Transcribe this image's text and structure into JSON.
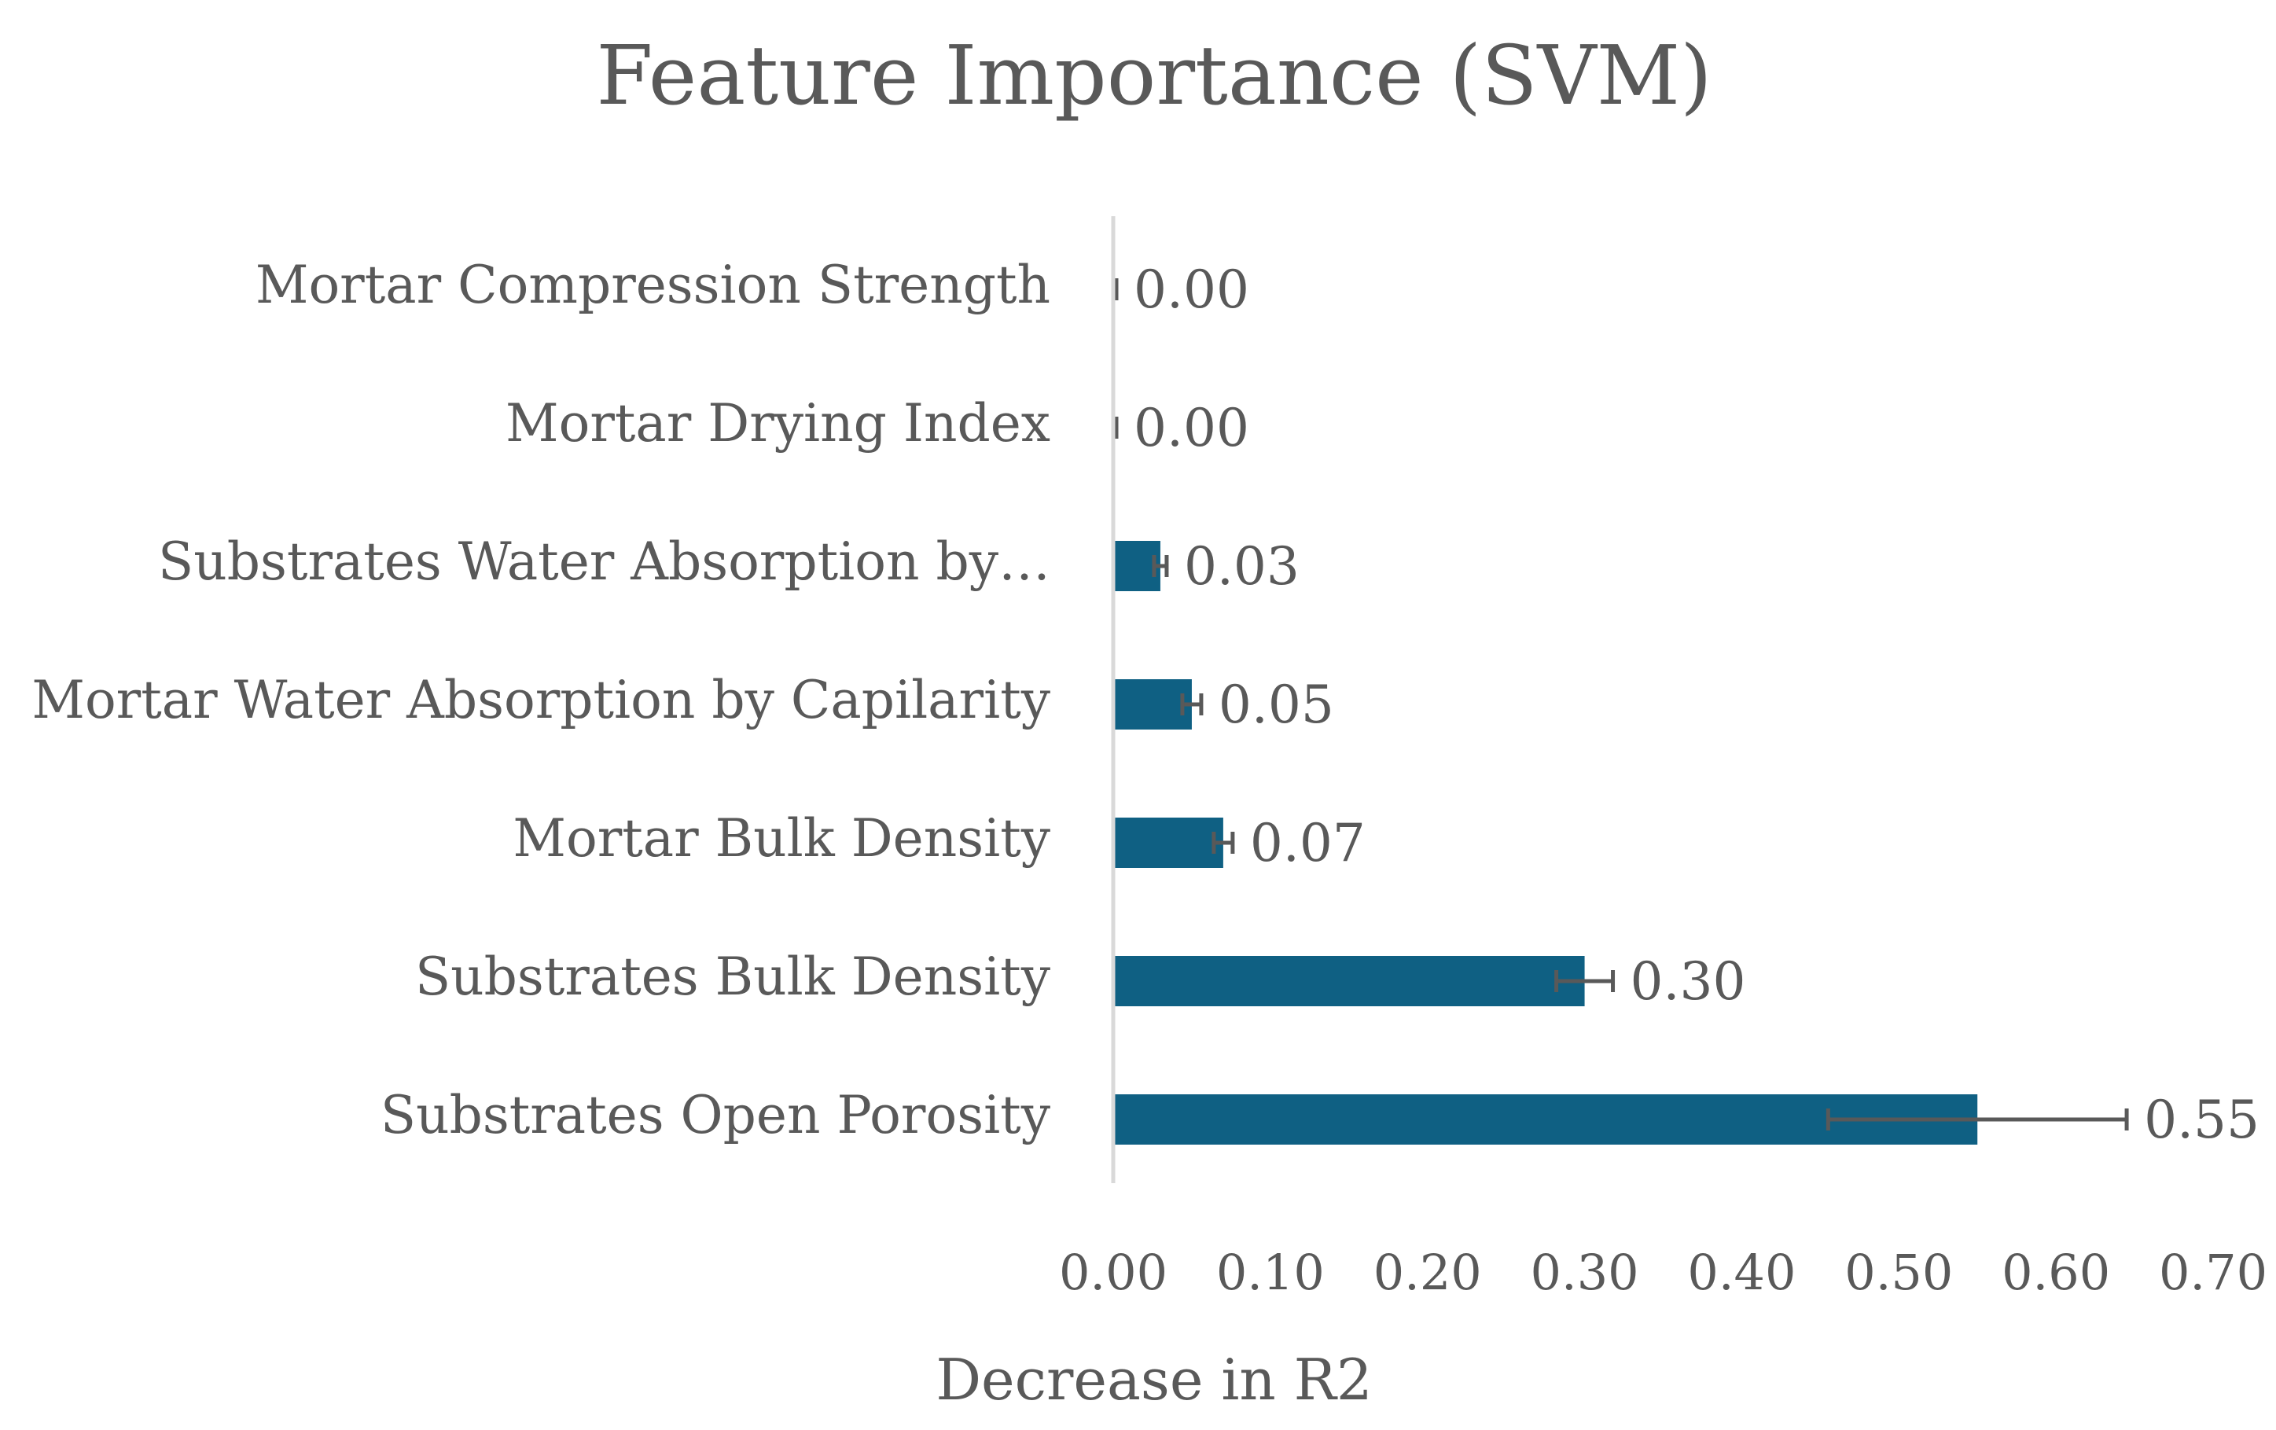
{
  "chart_data": {
    "type": "bar",
    "orientation": "horizontal",
    "title": "Feature Importance (SVM)",
    "xlabel": "Decrease in R2",
    "ylabel": "",
    "categories": [
      "Mortar Compression Strength",
      "Mortar Drying Index",
      "Substrates Water Absorption by…",
      "Mortar Water Absorption by Capilarity",
      "Mortar Bulk Density",
      "Substrates Bulk Density",
      "Substrates Open Porosity"
    ],
    "values": [
      0.0,
      0.0,
      0.03,
      0.05,
      0.07,
      0.3,
      0.55
    ],
    "error": [
      0.002,
      0.002,
      0.004,
      0.006,
      0.006,
      0.018,
      0.095
    ],
    "data_labels": [
      "0.00",
      "0.00",
      "0.03",
      "0.05",
      "0.07",
      "0.30",
      "0.55"
    ],
    "xlim": [
      0,
      0.7
    ],
    "xticks": [
      0,
      0.1,
      0.2,
      0.3,
      0.4,
      0.5,
      0.6,
      0.7
    ],
    "xtick_labels": [
      "0.00",
      "0.10",
      "0.20",
      "0.30",
      "0.40",
      "0.50",
      "0.60",
      "0.70"
    ],
    "grid": false,
    "legend": "none",
    "colors": {
      "bar": "#0f6083",
      "error_bar": "#595959",
      "axis": "#d9d9d9",
      "text": "#595959"
    }
  }
}
